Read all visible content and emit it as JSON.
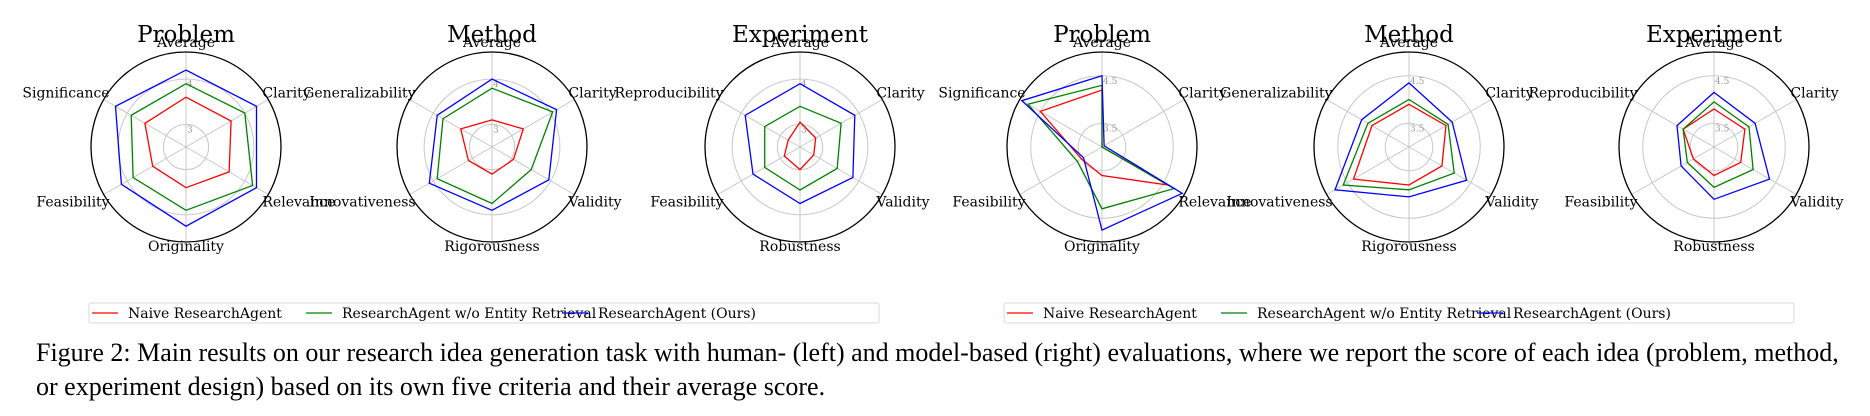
{
  "chart_data": [
    {
      "type": "radar",
      "group": "human",
      "title": "Problem",
      "axes": [
        "Average",
        "Clarity",
        "Relevance",
        "Originality",
        "Feasibility",
        "Significance"
      ],
      "ticks": [
        "3",
        "4"
      ],
      "rlim": [
        2.5,
        4.6
      ],
      "series": [
        {
          "name": "Naive ResearchAgent",
          "color": "#ff0000",
          "values": [
            3.6,
            3.65,
            3.6,
            3.4,
            3.35,
            3.55
          ]
        },
        {
          "name": "ResearchAgent w/o Entity Retrieval",
          "color": "#008000",
          "values": [
            3.9,
            4.0,
            4.2,
            3.9,
            3.85,
            3.9
          ]
        },
        {
          "name": "ResearchAgent (Ours)",
          "color": "#0000ff",
          "values": [
            4.2,
            4.3,
            4.3,
            4.25,
            4.15,
            4.3
          ]
        }
      ]
    },
    {
      "type": "radar",
      "group": "human",
      "title": "Method",
      "axes": [
        "Average",
        "Clarity",
        "Validity",
        "Rigorousness",
        "Innovativeness",
        "Generalizability"
      ],
      "ticks": [
        "3",
        "4"
      ],
      "rlim": [
        2.5,
        4.6
      ],
      "series": [
        {
          "name": "Naive ResearchAgent",
          "color": "#ff0000",
          "values": [
            3.1,
            3.3,
            3.05,
            3.1,
            3.1,
            3.3
          ]
        },
        {
          "name": "ResearchAgent w/o Entity Retrieval",
          "color": "#008000",
          "values": [
            3.8,
            4.05,
            3.5,
            3.75,
            3.9,
            3.75
          ]
        },
        {
          "name": "ResearchAgent (Ours)",
          "color": "#0000ff",
          "values": [
            4.0,
            4.15,
            3.95,
            3.9,
            4.1,
            3.9
          ]
        }
      ]
    },
    {
      "type": "radar",
      "group": "human",
      "title": "Experiment",
      "axes": [
        "Average",
        "Clarity",
        "Validity",
        "Robustness",
        "Feasibility",
        "Reproducibility"
      ],
      "ticks": [
        "3",
        "4"
      ],
      "rlim": [
        2.5,
        4.6
      ],
      "series": [
        {
          "name": "Naive ResearchAgent",
          "color": "#ff0000",
          "values": [
            3.05,
            2.9,
            2.85,
            3.0,
            2.9,
            2.8
          ]
        },
        {
          "name": "ResearchAgent w/o Entity Retrieval",
          "color": "#008000",
          "values": [
            3.4,
            3.55,
            3.45,
            3.45,
            3.4,
            3.4
          ]
        },
        {
          "name": "ResearchAgent (Ours)",
          "color": "#0000ff",
          "values": [
            3.9,
            3.9,
            3.85,
            3.75,
            3.7,
            3.9
          ]
        }
      ]
    },
    {
      "type": "radar",
      "group": "model",
      "title": "Problem",
      "axes": [
        "Average",
        "Clarity",
        "Relevance",
        "Originality",
        "Feasibility",
        "Significance"
      ],
      "ticks": [
        "3.5",
        "4.5"
      ],
      "rlim": [
        3.0,
        5.0
      ],
      "series": [
        {
          "name": "Naive ResearchAgent",
          "color": "#ff0000",
          "values": [
            4.2,
            3.0,
            4.6,
            3.6,
            3.5,
            4.5
          ]
        },
        {
          "name": "ResearchAgent w/o Entity Retrieval",
          "color": "#008000",
          "values": [
            4.3,
            3.0,
            4.75,
            4.3,
            3.6,
            4.8
          ]
        },
        {
          "name": "ResearchAgent (Ours)",
          "color": "#0000ff",
          "values": [
            4.5,
            3.05,
            4.95,
            4.75,
            3.45,
            4.95
          ]
        }
      ]
    },
    {
      "type": "radar",
      "group": "model",
      "title": "Method",
      "axes": [
        "Average",
        "Clarity",
        "Validity",
        "Rigorousness",
        "Innovativeness",
        "Generalizability"
      ],
      "ticks": [
        "3.5",
        "4.5"
      ],
      "rlim": [
        3.0,
        5.0
      ],
      "series": [
        {
          "name": "Naive ResearchAgent",
          "color": "#ff0000",
          "values": [
            3.9,
            3.9,
            3.8,
            3.8,
            4.35,
            3.9
          ]
        },
        {
          "name": "ResearchAgent w/o Entity Retrieval",
          "color": "#008000",
          "values": [
            4.0,
            3.95,
            4.1,
            3.9,
            4.6,
            4.0
          ]
        },
        {
          "name": "ResearchAgent (Ours)",
          "color": "#0000ff",
          "values": [
            4.35,
            4.05,
            4.4,
            4.05,
            4.8,
            4.15
          ]
        }
      ]
    },
    {
      "type": "radar",
      "group": "model",
      "title": "Experiment",
      "axes": [
        "Average",
        "Clarity",
        "Validity",
        "Robustness",
        "Feasibility",
        "Reproducibility"
      ],
      "ticks": [
        "3.5",
        "4.5"
      ],
      "rlim": [
        3.0,
        5.0
      ],
      "series": [
        {
          "name": "Naive ResearchAgent",
          "color": "#ff0000",
          "values": [
            3.8,
            3.75,
            3.65,
            3.6,
            3.5,
            3.75
          ]
        },
        {
          "name": "ResearchAgent w/o Entity Retrieval",
          "color": "#008000",
          "values": [
            3.95,
            3.85,
            3.95,
            3.85,
            3.65,
            3.75
          ]
        },
        {
          "name": "ResearchAgent (Ours)",
          "color": "#0000ff",
          "values": [
            4.15,
            4.0,
            4.35,
            4.1,
            3.8,
            3.9
          ]
        }
      ]
    }
  ],
  "legend_groups": [
    {
      "group": "human",
      "entries": [
        "Naive ResearchAgent",
        "ResearchAgent w/o Entity Retrieval",
        "ResearchAgent (Ours)"
      ]
    },
    {
      "group": "model",
      "entries": [
        "Naive ResearchAgent",
        "ResearchAgent w/o Entity Retrieval",
        "ResearchAgent (Ours)"
      ]
    }
  ],
  "caption": "Figure 2: Main results on our research idea generation task with human- (left) and model-based (right) evaluations, where we report the score of each idea (problem, method, or experiment design) based on its own five criteria and their average score."
}
